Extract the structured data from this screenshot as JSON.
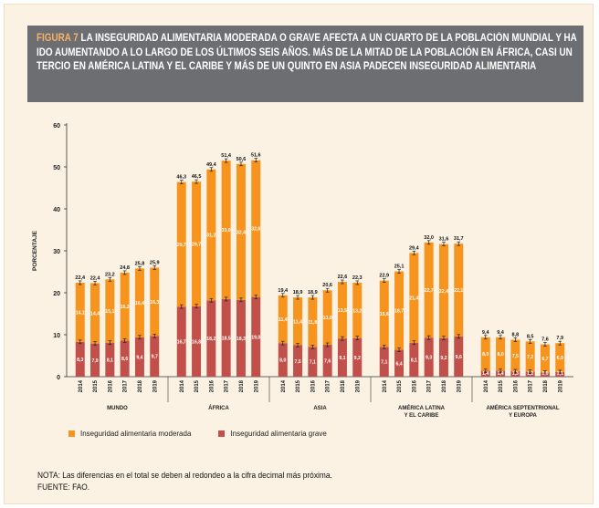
{
  "title": {
    "lead": "FIGURA 7",
    "text": "LA INSEGURIDAD ALIMENTARIA MODERADA O GRAVE AFECTA A UN CUARTO DE LA POBLACIÓN MUNDIAL Y HA IDO AUMENTANDO A LO LARGO DE LOS ÚLTIMOS SEIS AÑOS. MÁS DE LA MITAD DE LA POBLACIÓN EN ÁFRICA, CASI UN TERCIO EN AMÉRICA LATINA Y EL CARIBE Y MÁS DE UN QUINTO EN ASIA PADECEN INSEGURIDAD ALIMENTARIA"
  },
  "chart_data": {
    "type": "bar",
    "stacked": true,
    "ylabel": "PORCENTAJE",
    "ylim": [
      0,
      60
    ],
    "yticks": [
      0,
      10,
      20,
      30,
      40,
      50,
      60
    ],
    "years": [
      "2014",
      "2015",
      "2016",
      "2017",
      "2018",
      "2019"
    ],
    "groups": [
      {
        "name": "MUNDO",
        "severe": [
          8.3,
          7.9,
          8.1,
          8.6,
          9.4,
          9.7
        ],
        "moderate": [
          14.1,
          14.4,
          15.1,
          16.2,
          16.4,
          16.3
        ],
        "total": [
          22.4,
          22.4,
          23.2,
          24.8,
          25.8,
          25.9
        ],
        "severe_labels": [
          "8,3",
          "7,9",
          "8,1",
          "8,6",
          "9,4",
          "9,7"
        ],
        "moderate_labels": [
          "14,1",
          "14,4",
          "15,1",
          "16,2",
          "16,4",
          "16,3"
        ],
        "total_labels": [
          "22,4",
          "22,4",
          "23,2",
          "24,8",
          "25,8",
          "25,9"
        ]
      },
      {
        "name": "ÁFRICA",
        "severe": [
          16.7,
          16.8,
          18.2,
          18.5,
          18.3,
          19.0
        ],
        "moderate": [
          29.7,
          29.7,
          31.2,
          33.0,
          32.4,
          32.6
        ],
        "total": [
          46.3,
          46.5,
          49.4,
          51.4,
          50.6,
          51.6
        ],
        "severe_labels": [
          "16,7",
          "16,8",
          "18,2",
          "18,5",
          "18,3",
          "19,0"
        ],
        "moderate_labels": [
          "29,7",
          "29,7",
          "31,2",
          "33,0",
          "32,4",
          "32,6"
        ],
        "total_labels": [
          "46,3",
          "46,5",
          "49,4",
          "51,4",
          "50,6",
          "51,6"
        ]
      },
      {
        "name": "ASIA",
        "severe": [
          8.0,
          7.5,
          7.1,
          7.6,
          9.1,
          9.2
        ],
        "moderate": [
          11.4,
          11.4,
          11.8,
          13.0,
          13.5,
          13.2
        ],
        "total": [
          19.4,
          18.9,
          18.9,
          20.6,
          22.6,
          22.3
        ],
        "severe_labels": [
          "8,0",
          "7,5",
          "7,1",
          "7,6",
          "9,1",
          "9,2"
        ],
        "moderate_labels": [
          "11,4",
          "11,4",
          "11,8",
          "13,0",
          "13,5",
          "13,2"
        ],
        "total_labels": [
          "19,4",
          "18,9",
          "18,9",
          "20,6",
          "22,6",
          "22,3"
        ]
      },
      {
        "name": "AMÉRICA LATINA\nY EL CARIBE",
        "severe": [
          7.1,
          6.4,
          8.1,
          9.3,
          9.2,
          9.6
        ],
        "moderate": [
          15.8,
          18.7,
          21.4,
          22.7,
          22.4,
          22.1
        ],
        "total": [
          22.9,
          25.1,
          29.4,
          32.0,
          31.6,
          31.7
        ],
        "severe_labels": [
          "7,1",
          "6,4",
          "8,1",
          "9,3",
          "9,2",
          "9,6"
        ],
        "moderate_labels": [
          "15,8",
          "18,7",
          "21,4",
          "22,7",
          "22,4",
          "22,1"
        ],
        "total_labels": [
          "22,9",
          "25,1",
          "29,4",
          "32,0",
          "31,6",
          "31,7"
        ]
      },
      {
        "name": "AMÉRICA SEPTENTRIONAL\nY EUROPA",
        "severe": [
          1.4,
          1.4,
          1.3,
          1.2,
          1.0,
          1.1
        ],
        "moderate": [
          8.0,
          8.0,
          7.5,
          7.2,
          6.7,
          6.9
        ],
        "total": [
          9.4,
          9.4,
          8.8,
          8.5,
          7.6,
          7.9
        ],
        "severe_labels": [
          "1,4",
          "1,4",
          "1,3",
          "1,2",
          "1,0",
          "1,1"
        ],
        "moderate_labels": [
          "8,0",
          "8,0",
          "7,5",
          "7,2",
          "6,7",
          "6,9"
        ],
        "total_labels": [
          "9,4",
          "9,4",
          "8,8",
          "8,5",
          "7,6",
          "7,9"
        ]
      }
    ],
    "series": [
      {
        "name": "Inseguridad alimentaria moderada",
        "color": "#f7941d"
      },
      {
        "name": "Inseguridad alimentaria grave",
        "color": "#c1504b"
      }
    ]
  },
  "notes": {
    "nota": "NOTA: Las diferencias en el total se deben al redondeo a la cifra decimal más próxima.",
    "fuente": "FUENTE: FAO."
  }
}
